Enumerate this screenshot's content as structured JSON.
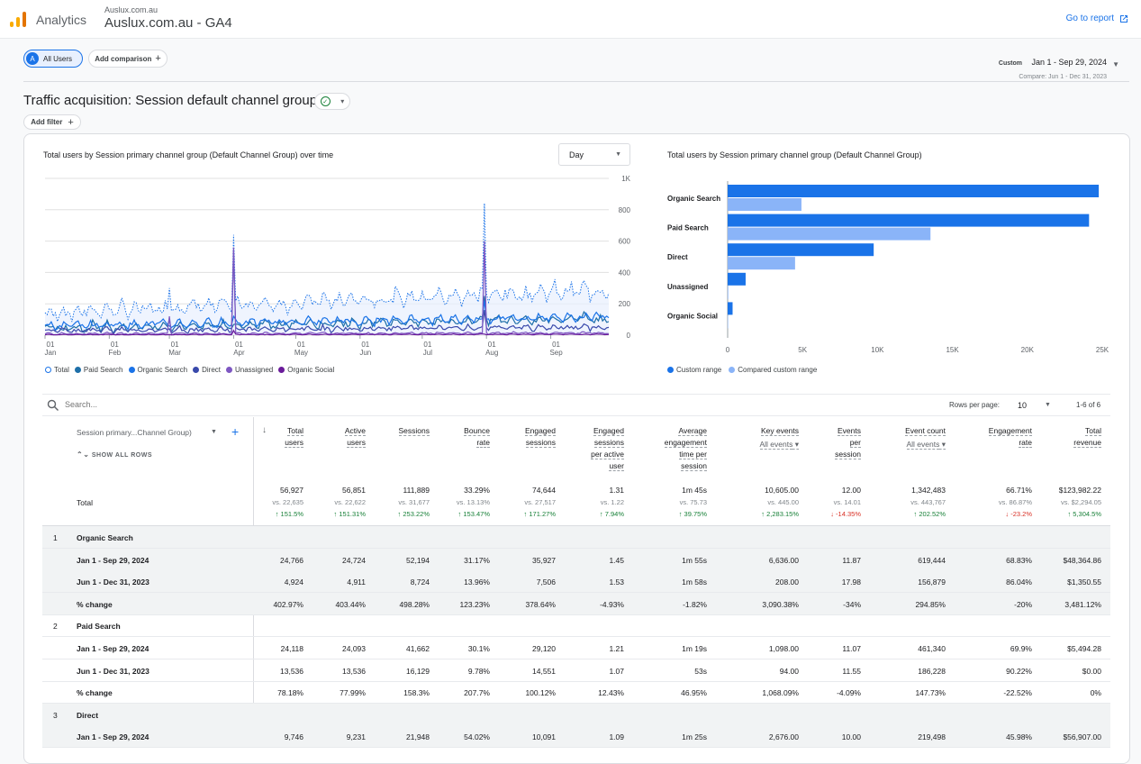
{
  "header": {
    "app_name": "Analytics",
    "account_small": "Auslux.com.au",
    "account_big": "Auslux.com.au - GA4",
    "goto_report": "Go to report"
  },
  "compare": {
    "all_users_badge": "A",
    "all_users": "All Users",
    "add_comparison": "Add comparison",
    "date_custom": "Custom",
    "date_range": "Jan 1 - Sep 29, 2024",
    "date_compare": "Compare: Jun 1 - Dec 31, 2023"
  },
  "page": {
    "title": "Traffic acquisition: Session default channel group",
    "add_filter": "Add filter"
  },
  "line_chart": {
    "title": "Total users by Session primary channel group (Default Channel Group) over time",
    "granularity": "Day",
    "y_ticks": [
      "1K",
      "800",
      "600",
      "400",
      "200",
      "0"
    ],
    "x_ticks": [
      {
        "d": "01",
        "m": "Jan"
      },
      {
        "d": "01",
        "m": "Feb"
      },
      {
        "d": "01",
        "m": "Mar"
      },
      {
        "d": "01",
        "m": "Apr"
      },
      {
        "d": "01",
        "m": "May"
      },
      {
        "d": "01",
        "m": "Jun"
      },
      {
        "d": "01",
        "m": "Jul"
      },
      {
        "d": "01",
        "m": "Aug"
      },
      {
        "d": "01",
        "m": "Sep"
      }
    ],
    "legend": [
      {
        "name": "Total",
        "color": "#ffffff",
        "border": "#1a73e8"
      },
      {
        "name": "Paid Search",
        "color": "#1e6fa8"
      },
      {
        "name": "Organic Search",
        "color": "#1a73e8"
      },
      {
        "name": "Direct",
        "color": "#3949ab"
      },
      {
        "name": "Unassigned",
        "color": "#7e57c2"
      },
      {
        "name": "Organic Social",
        "color": "#6a1b9a"
      }
    ]
  },
  "bar_chart": {
    "title": "Total users by Session primary channel group (Default Channel Group)",
    "legend_current": "Custom range",
    "legend_compare": "Compared custom range",
    "color_current": "#1a73e8",
    "color_compare": "#8ab4f8"
  },
  "chart_data": {
    "type": "bar",
    "orientation": "horizontal",
    "categories": [
      "Organic Search",
      "Paid Search",
      "Direct",
      "Unassigned",
      "Organic Social"
    ],
    "series": [
      {
        "name": "Custom range",
        "values": [
          24766,
          24118,
          9746,
          1200,
          330
        ]
      },
      {
        "name": "Compared custom range",
        "values": [
          4924,
          13536,
          4500,
          40,
          10
        ]
      }
    ],
    "x_ticks": [
      "0",
      "5K",
      "10K",
      "15K",
      "20K",
      "25K"
    ],
    "xlim": [
      0,
      25000
    ]
  },
  "table": {
    "search_placeholder": "Search...",
    "rows_per_page_label": "Rows per page:",
    "rows_per_page": "10",
    "range": "1-6 of 6",
    "dimension_header": "Session primary...Channel Group)",
    "show_all_rows": "SHOW ALL ROWS",
    "total_label": "Total",
    "columns": [
      {
        "h1": "Total",
        "h2": "users",
        "total": "56,927",
        "vs": "vs. 22,635",
        "change": "↑ 151.5%",
        "dir": "up"
      },
      {
        "h1": "Active",
        "h2": "users",
        "total": "56,851",
        "vs": "vs. 22,622",
        "change": "↑ 151.31%",
        "dir": "up"
      },
      {
        "h1": "Sessions",
        "h2": "",
        "total": "111,889",
        "vs": "vs. 31,677",
        "change": "↑ 253.22%",
        "dir": "up"
      },
      {
        "h1": "Bounce",
        "h2": "rate",
        "total": "33.29%",
        "vs": "vs. 13.13%",
        "change": "↑ 153.47%",
        "dir": "up"
      },
      {
        "h1": "Engaged",
        "h2": "sessions",
        "total": "74,644",
        "vs": "vs. 27,517",
        "change": "↑ 171.27%",
        "dir": "up"
      },
      {
        "h1": "Engaged",
        "h2": "sessions",
        "h3": "per active",
        "h4": "user",
        "total": "1.31",
        "vs": "vs. 1.22",
        "change": "↑ 7.94%",
        "dir": "up"
      },
      {
        "h1": "Average",
        "h2": "engagement",
        "h3": "time per",
        "h4": "session",
        "total": "1m 45s",
        "vs": "vs. 75.73",
        "change": "↑ 39.75%",
        "dir": "up"
      },
      {
        "h1": "Key events",
        "sub": "All events",
        "total": "10,605.00",
        "vs": "vs. 445.00",
        "change": "↑ 2,283.15%",
        "dir": "up"
      },
      {
        "h1": "Events",
        "h2": "per",
        "h3": "session",
        "total": "12.00",
        "vs": "vs. 14.01",
        "change": "↓ -14.35%",
        "dir": "down"
      },
      {
        "h1": "Event count",
        "sub": "All events",
        "total": "1,342,483",
        "vs": "vs. 443,767",
        "change": "↑ 202.52%",
        "dir": "up"
      },
      {
        "h1": "Engagement",
        "h2": "rate",
        "total": "66.71%",
        "vs": "vs. 86.87%",
        "change": "↓ -23.2%",
        "dir": "down"
      },
      {
        "h1": "Total",
        "h2": "revenue",
        "total": "$123,982.22",
        "vs": "vs. $2,294.05",
        "change": "↑ 5,304.5%",
        "dir": "up"
      }
    ],
    "rows": [
      {
        "idx": "1",
        "label": "Organic Search",
        "type": "group",
        "grey": true
      },
      {
        "label": "Jan 1 - Sep 29, 2024",
        "grey": true,
        "cells": [
          "24,766",
          "24,724",
          "52,194",
          "31.17%",
          "35,927",
          "1.45",
          "1m 55s",
          "6,636.00",
          "11.87",
          "619,444",
          "68.83%",
          "$48,364.86"
        ]
      },
      {
        "label": "Jun 1 - Dec 31, 2023",
        "grey": true,
        "cells": [
          "4,924",
          "4,911",
          "8,724",
          "13.96%",
          "7,506",
          "1.53",
          "1m 58s",
          "208.00",
          "17.98",
          "156,879",
          "86.04%",
          "$1,350.55"
        ]
      },
      {
        "label": "% change",
        "grey": true,
        "cells": [
          "402.97%",
          "403.44%",
          "498.28%",
          "123.23%",
          "378.64%",
          "-4.93%",
          "-1.82%",
          "3,090.38%",
          "-34%",
          "294.85%",
          "-20%",
          "3,481.12%"
        ]
      },
      {
        "idx": "2",
        "label": "Paid Search",
        "type": "group",
        "grey": false
      },
      {
        "label": "Jan 1 - Sep 29, 2024",
        "grey": false,
        "cells": [
          "24,118",
          "24,093",
          "41,662",
          "30.1%",
          "29,120",
          "1.21",
          "1m 19s",
          "1,098.00",
          "11.07",
          "461,340",
          "69.9%",
          "$5,494.28"
        ]
      },
      {
        "label": "Jun 1 - Dec 31, 2023",
        "grey": false,
        "cells": [
          "13,536",
          "13,536",
          "16,129",
          "9.78%",
          "14,551",
          "1.07",
          "53s",
          "94.00",
          "11.55",
          "186,228",
          "90.22%",
          "$0.00"
        ]
      },
      {
        "label": "% change",
        "grey": false,
        "cells": [
          "78.18%",
          "77.99%",
          "158.3%",
          "207.7%",
          "100.12%",
          "12.43%",
          "46.95%",
          "1,068.09%",
          "-4.09%",
          "147.73%",
          "-22.52%",
          "0%"
        ]
      },
      {
        "idx": "3",
        "label": "Direct",
        "type": "group",
        "grey": true
      },
      {
        "label": "Jan 1 - Sep 29, 2024",
        "grey": true,
        "cells": [
          "9,746",
          "9,231",
          "21,948",
          "54.02%",
          "10,091",
          "1.09",
          "1m 25s",
          "2,676.00",
          "10.00",
          "219,498",
          "45.98%",
          "$56,907.00"
        ]
      }
    ]
  }
}
